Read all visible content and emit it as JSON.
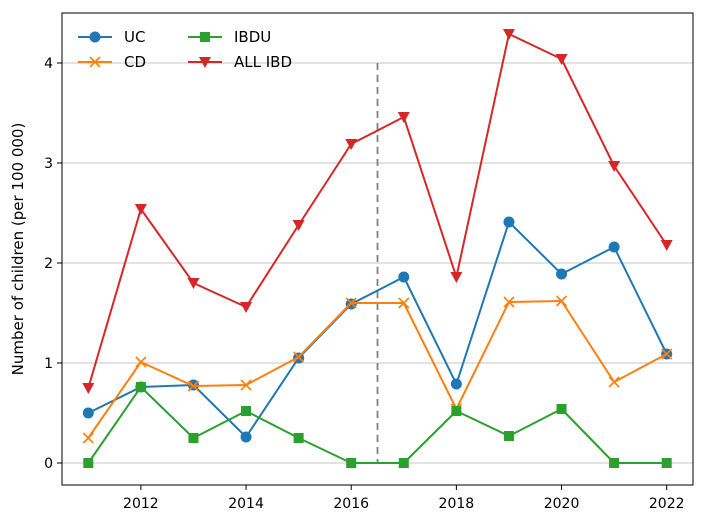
{
  "chart_data": {
    "type": "line",
    "title": "",
    "xlabel": "",
    "ylabel": "Number of children (per 100 000)",
    "x": [
      2011,
      2012,
      2013,
      2014,
      2015,
      2016,
      2017,
      2018,
      2019,
      2020,
      2021,
      2022
    ],
    "xlim": [
      2010.5,
      2022.5
    ],
    "ylim": [
      -0.22,
      4.5
    ],
    "xticks": [
      2012,
      2014,
      2016,
      2018,
      2020,
      2022
    ],
    "yticks": [
      0,
      1,
      2,
      3,
      4
    ],
    "grid": "horizontal",
    "legend_position": "top-left",
    "reference_line": {
      "x": 2016.5,
      "style": "dashed",
      "color": "#808080"
    },
    "series": [
      {
        "name": "UC",
        "color": "#1f77b4",
        "marker": "circle",
        "values": [
          0.5,
          0.76,
          0.78,
          0.26,
          1.05,
          1.59,
          1.86,
          0.79,
          2.41,
          1.89,
          2.16,
          1.09
        ]
      },
      {
        "name": "CD",
        "color": "#ff7f0e",
        "marker": "x",
        "values": [
          0.25,
          1.01,
          0.77,
          0.78,
          1.06,
          1.6,
          1.6,
          0.54,
          1.61,
          1.62,
          0.81,
          1.09
        ]
      },
      {
        "name": "IBDU",
        "color": "#2ca02c",
        "marker": "square",
        "values": [
          0.0,
          0.76,
          0.25,
          0.52,
          0.25,
          0.0,
          0.0,
          0.52,
          0.27,
          0.54,
          0.0,
          0.0
        ]
      },
      {
        "name": "ALL IBD",
        "color": "#d62728",
        "marker": "triangle-down",
        "values": [
          0.75,
          2.54,
          1.8,
          1.56,
          2.38,
          3.19,
          3.46,
          1.86,
          4.29,
          4.04,
          2.97,
          2.18
        ]
      }
    ]
  }
}
